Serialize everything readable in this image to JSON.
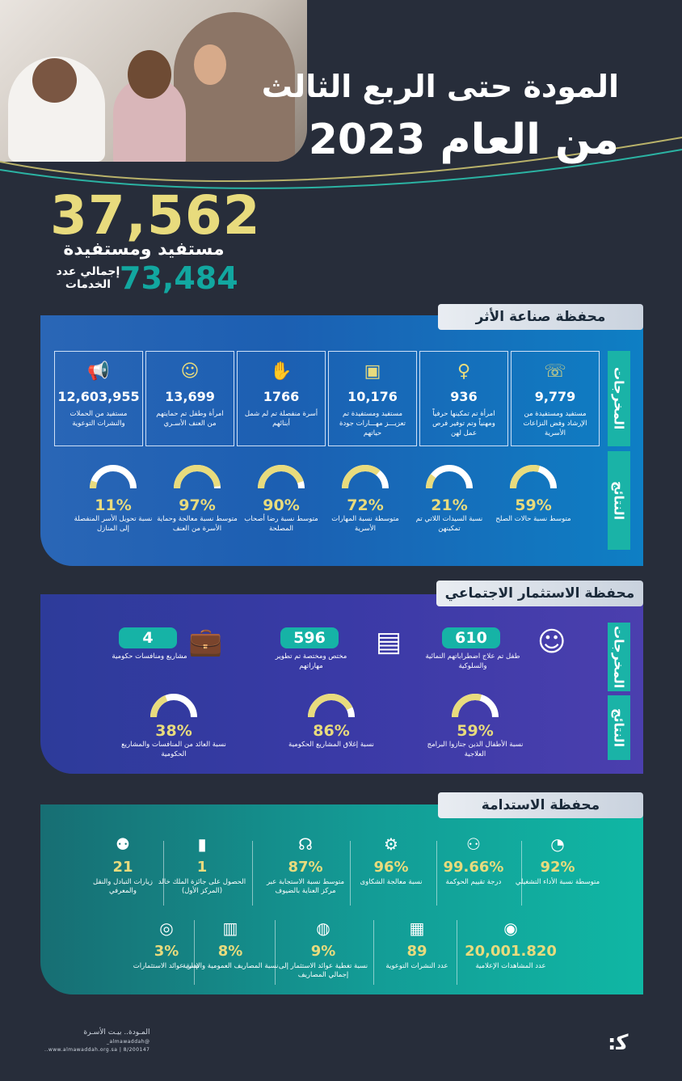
{
  "header": {
    "title_line1": "المودة حتى الربع الثالث",
    "title_line2": "من العام 2023"
  },
  "summary": {
    "beneficiaries": "37,562",
    "beneficiaries_label": "مستفيد ومستفيدة",
    "services": "73,484",
    "services_label": "إجمالي عدد الخدمات"
  },
  "impact": {
    "title": "محفظة صناعة الأثر",
    "outputs_label": "المخرجات",
    "results_label": "النتائج",
    "cards": [
      {
        "icon": "support-icon",
        "value": "9,779",
        "label": "مستفيد ومستفيدة من الإرشاد وفض النزاعات الأسرية"
      },
      {
        "icon": "woman-icon",
        "value": "936",
        "label": "امرأة تم تمكينها حرفياً ومهنياً وتم توفير فرص عمل لهن"
      },
      {
        "icon": "presentation-icon",
        "value": "10,176",
        "label": "مستفيد ومستفيدة تم تعزيـــز مهـــارات جودة حياتهم"
      },
      {
        "icon": "hands-icon",
        "value": "1766",
        "label": "أسرة منفصلة تم لم شمل أبنائهم"
      },
      {
        "icon": "family-icon",
        "value": "13,699",
        "label": "امرأة وطفل تم حمايتهم من العنف الأسـري"
      },
      {
        "icon": "megaphone-icon",
        "value": "12,603,955",
        "label": "مستفيد من الحملات والنشرات التوعوية"
      }
    ],
    "gauges": [
      {
        "value": "59%",
        "fill": 0.59,
        "label": "متوسط نسبة حالات الصلح"
      },
      {
        "value": "21%",
        "fill": 0.21,
        "label": "نسبة السيدات اللاتي تم تمكينهن"
      },
      {
        "value": "72%",
        "fill": 0.72,
        "label": "متوسطة نسبة المهارات الأسرية"
      },
      {
        "value": "90%",
        "fill": 0.9,
        "label": "متوسط نسبة رضا أصحاب المصلحة"
      },
      {
        "value": "97%",
        "fill": 0.97,
        "label": "متوسط نسبة معالجة وحماية الأسرة من العنف"
      },
      {
        "value": "11%",
        "fill": 0.11,
        "label": "نسبة تحويل الأسر المنفصلة إلى المنازل"
      }
    ]
  },
  "social": {
    "title": "محفظة الاستثمار الاجتماعي",
    "outputs_label": "المخرجات",
    "results_label": "النتائج",
    "items": [
      {
        "icon": "child-icon",
        "value": "610",
        "label": "طفل تم علاج اضطراباتهم النمائية والسلوكية"
      },
      {
        "icon": "trainer-icon",
        "value": "596",
        "label": "مختص ومختصة تم تطوير مهاراتهم"
      },
      {
        "icon": "briefcase-icon",
        "value": "4",
        "label": "مشاريع ومنافسات حكومية"
      }
    ],
    "gauges": [
      {
        "value": "59%",
        "fill": 0.59,
        "label": "نسبة الأطفال الذين جتازوا البرامج العلاجية"
      },
      {
        "value": "86%",
        "fill": 0.86,
        "label": "نسبة إغلاق المشاريع الحكومية"
      },
      {
        "value": "38%",
        "fill": 0.38,
        "label": "نسبة العائد من المنافسات والمشاريع الحكومية"
      }
    ]
  },
  "sustain": {
    "title": "محفظة الاستدامة",
    "row1": [
      {
        "icon": "dashboard-icon",
        "value": "92%",
        "label": "متوسطة نسبة الأداء التشغيلي"
      },
      {
        "icon": "network-icon",
        "value": "99.66%",
        "label": "درجة تقييم الحوكمة"
      },
      {
        "icon": "gear-hand-icon",
        "value": "96%",
        "label": "نسبة معالجة الشكاوى"
      },
      {
        "icon": "headset-icon",
        "value": "87%",
        "label": "متوسط نسبة الاستجابة عبر مركز العناية بالضيوف"
      },
      {
        "icon": "award-icon",
        "value": "1",
        "label": "الحصول على جائزة الملك خالد (المركز الأول)"
      },
      {
        "icon": "people-icon",
        "value": "21",
        "label": "زيارات التبادل والنقل والمعرفي"
      }
    ],
    "row2": [
      {
        "icon": "eye-icon",
        "value": "20,001.820",
        "label": "عدد المشاهدات الإعلامية"
      },
      {
        "icon": "newspaper-icon",
        "value": "89",
        "label": "عدد النشرات التوعوية"
      },
      {
        "icon": "money-bag-icon",
        "value": "9%",
        "label": "نسبة تغطية عوائد الاستثمار إلى إجمالي المصاريف"
      },
      {
        "icon": "cash-icon",
        "value": "8%",
        "label": "نسبة المصاريف العمومية والإدارية"
      },
      {
        "icon": "coins-icon",
        "value": "3%",
        "label": "نسبة عوائد الاستثمارات"
      }
    ]
  },
  "footer": {
    "brand": "المـودة.. بيـت الأسـرة",
    "handle": "@almawaddah_",
    "site": "www.almawaddah.org.sa | 8/200147..",
    "logo": "ﮐ:"
  },
  "colors": {
    "gold": "#e8db7d",
    "teal": "#16b3a6",
    "bg": "#272d3a"
  }
}
